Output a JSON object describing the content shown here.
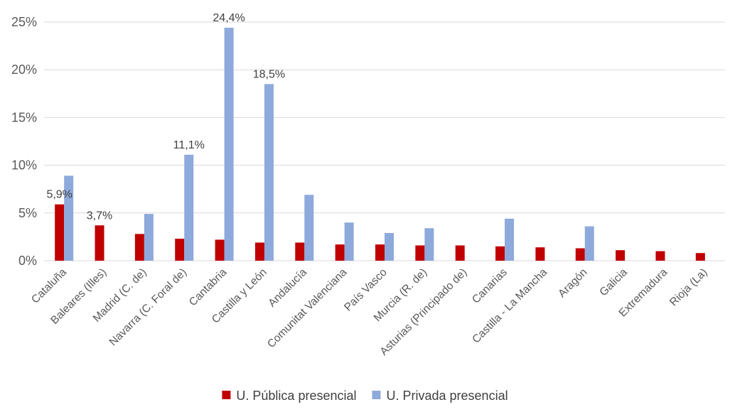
{
  "chart_data": {
    "type": "bar",
    "categories": [
      "Cataluña",
      "Baleares (Illes)",
      "Madrid (C. de)",
      "Navarra (C. Foral de)",
      "Cantabria",
      "Castilla y León",
      "Andalucía",
      "Comunitat Valenciana",
      "País Vasco",
      "Murcia (R. de)",
      "Asturias (Principado de)",
      "Canarias",
      "Castilla - La Mancha",
      "Aragón",
      "Galicia",
      "Extremadura",
      "Rioja (La)"
    ],
    "series": [
      {
        "name": "U. Pública presencial",
        "color": "#C00000",
        "values": [
          5.9,
          3.7,
          2.8,
          2.3,
          2.2,
          1.9,
          1.9,
          1.7,
          1.7,
          1.6,
          1.6,
          1.5,
          1.4,
          1.3,
          1.1,
          1.0,
          0.8
        ]
      },
      {
        "name": "U. Privada presencial",
        "color": "#8EA9DB",
        "values": [
          8.9,
          null,
          4.9,
          11.1,
          24.4,
          18.5,
          6.9,
          4.0,
          2.9,
          3.4,
          null,
          4.4,
          null,
          3.6,
          null,
          null,
          null
        ]
      }
    ],
    "data_labels": [
      {
        "series": 0,
        "index": 0,
        "text": "5,9%"
      },
      {
        "series": 0,
        "index": 1,
        "text": "3,7%"
      },
      {
        "series": 1,
        "index": 3,
        "text": "11,1%"
      },
      {
        "series": 1,
        "index": 4,
        "text": "24,4%"
      },
      {
        "series": 1,
        "index": 5,
        "text": "18,5%"
      }
    ],
    "y_ticks": [
      "0%",
      "5%",
      "10%",
      "15%",
      "20%",
      "25%"
    ],
    "ylim": [
      0,
      25
    ],
    "xlabel": "",
    "ylabel": "",
    "grid": true,
    "gridline_color": "#D9D9D9",
    "legend_position": "bottom",
    "legend": [
      {
        "label": "U. Pública presencial",
        "color": "#C00000"
      },
      {
        "label": "U. Privada presencial",
        "color": "#8EA9DB"
      }
    ]
  }
}
